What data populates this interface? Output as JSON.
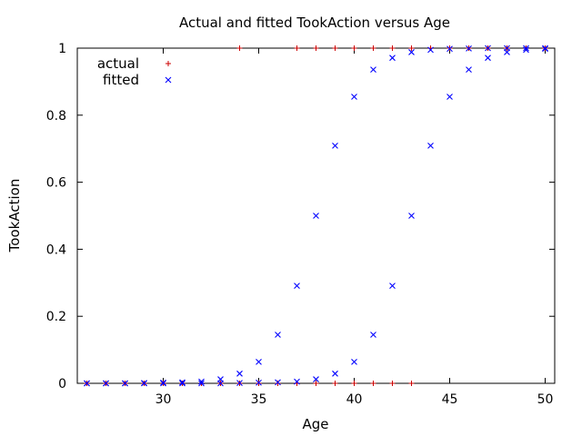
{
  "chart_data": {
    "type": "scatter",
    "title": "Actual and fitted TookAction versus Age",
    "xlabel": "Age",
    "ylabel": "TookAction",
    "xlim": [
      25.5,
      50.5
    ],
    "ylim": [
      0,
      1
    ],
    "x_ticks": [
      30,
      35,
      40,
      45,
      50
    ],
    "y_ticks": [
      0,
      0.2,
      0.4,
      0.6,
      0.8,
      1
    ],
    "x_tick_labels": [
      "30",
      "35",
      "40",
      "45",
      "50"
    ],
    "y_tick_labels": [
      "0",
      "0.2",
      "0.4",
      "0.6",
      "0.8",
      "1"
    ],
    "grid": false,
    "legend_position": "top-left",
    "series": [
      {
        "name": "actual",
        "marker": "+",
        "color": "#cc0000",
        "points": [
          [
            26,
            0
          ],
          [
            27,
            0
          ],
          [
            28,
            0
          ],
          [
            29,
            0
          ],
          [
            30,
            0
          ],
          [
            31,
            0
          ],
          [
            32,
            0
          ],
          [
            33,
            0
          ],
          [
            34,
            0
          ],
          [
            35,
            0
          ],
          [
            36,
            0
          ],
          [
            37,
            0
          ],
          [
            38,
            0
          ],
          [
            39,
            0
          ],
          [
            40,
            0
          ],
          [
            41,
            0
          ],
          [
            42,
            0
          ],
          [
            43,
            0
          ],
          [
            34,
            1
          ],
          [
            37,
            1
          ],
          [
            38,
            1
          ],
          [
            39,
            1
          ],
          [
            40,
            1
          ],
          [
            41,
            1
          ],
          [
            42,
            1
          ],
          [
            43,
            1
          ],
          [
            44,
            1
          ],
          [
            45,
            1
          ],
          [
            46,
            1
          ],
          [
            47,
            1
          ],
          [
            48,
            1
          ],
          [
            49,
            1
          ],
          [
            50,
            1
          ]
        ]
      },
      {
        "name": "fitted",
        "marker": "x",
        "color": "#0000ff",
        "points": [
          [
            26,
            0.0
          ],
          [
            27,
            0.0
          ],
          [
            28,
            0.0
          ],
          [
            29,
            0.001
          ],
          [
            30,
            0.002
          ],
          [
            31,
            0.003
          ],
          [
            32,
            0.005
          ],
          [
            33,
            0.012
          ],
          [
            34,
            0.029
          ],
          [
            35,
            0.064
          ],
          [
            36,
            0.145
          ],
          [
            37,
            0.291
          ],
          [
            38,
            0.5
          ],
          [
            39,
            0.709
          ],
          [
            40,
            0.855
          ],
          [
            41,
            0.936
          ],
          [
            42,
            0.971
          ],
          [
            43,
            0.988
          ],
          [
            44,
            0.995
          ],
          [
            45,
            0.998
          ],
          [
            46,
            0.999
          ],
          [
            47,
            1.0
          ],
          [
            48,
            1.0
          ],
          [
            49,
            1.0
          ],
          [
            50,
            1.0
          ],
          [
            26,
            0.0
          ],
          [
            27,
            0.0
          ],
          [
            28,
            0.0
          ],
          [
            29,
            0.0
          ],
          [
            30,
            0.0
          ],
          [
            31,
            0.0
          ],
          [
            32,
            0.0
          ],
          [
            33,
            0.0
          ],
          [
            34,
            0.001
          ],
          [
            35,
            0.002
          ],
          [
            36,
            0.003
          ],
          [
            37,
            0.005
          ],
          [
            38,
            0.012
          ],
          [
            39,
            0.029
          ],
          [
            40,
            0.064
          ],
          [
            41,
            0.145
          ],
          [
            42,
            0.291
          ],
          [
            43,
            0.5
          ],
          [
            44,
            0.709
          ],
          [
            45,
            0.855
          ],
          [
            46,
            0.936
          ],
          [
            47,
            0.971
          ],
          [
            48,
            0.988
          ],
          [
            49,
            0.995
          ],
          [
            50,
            0.998
          ]
        ]
      }
    ]
  }
}
